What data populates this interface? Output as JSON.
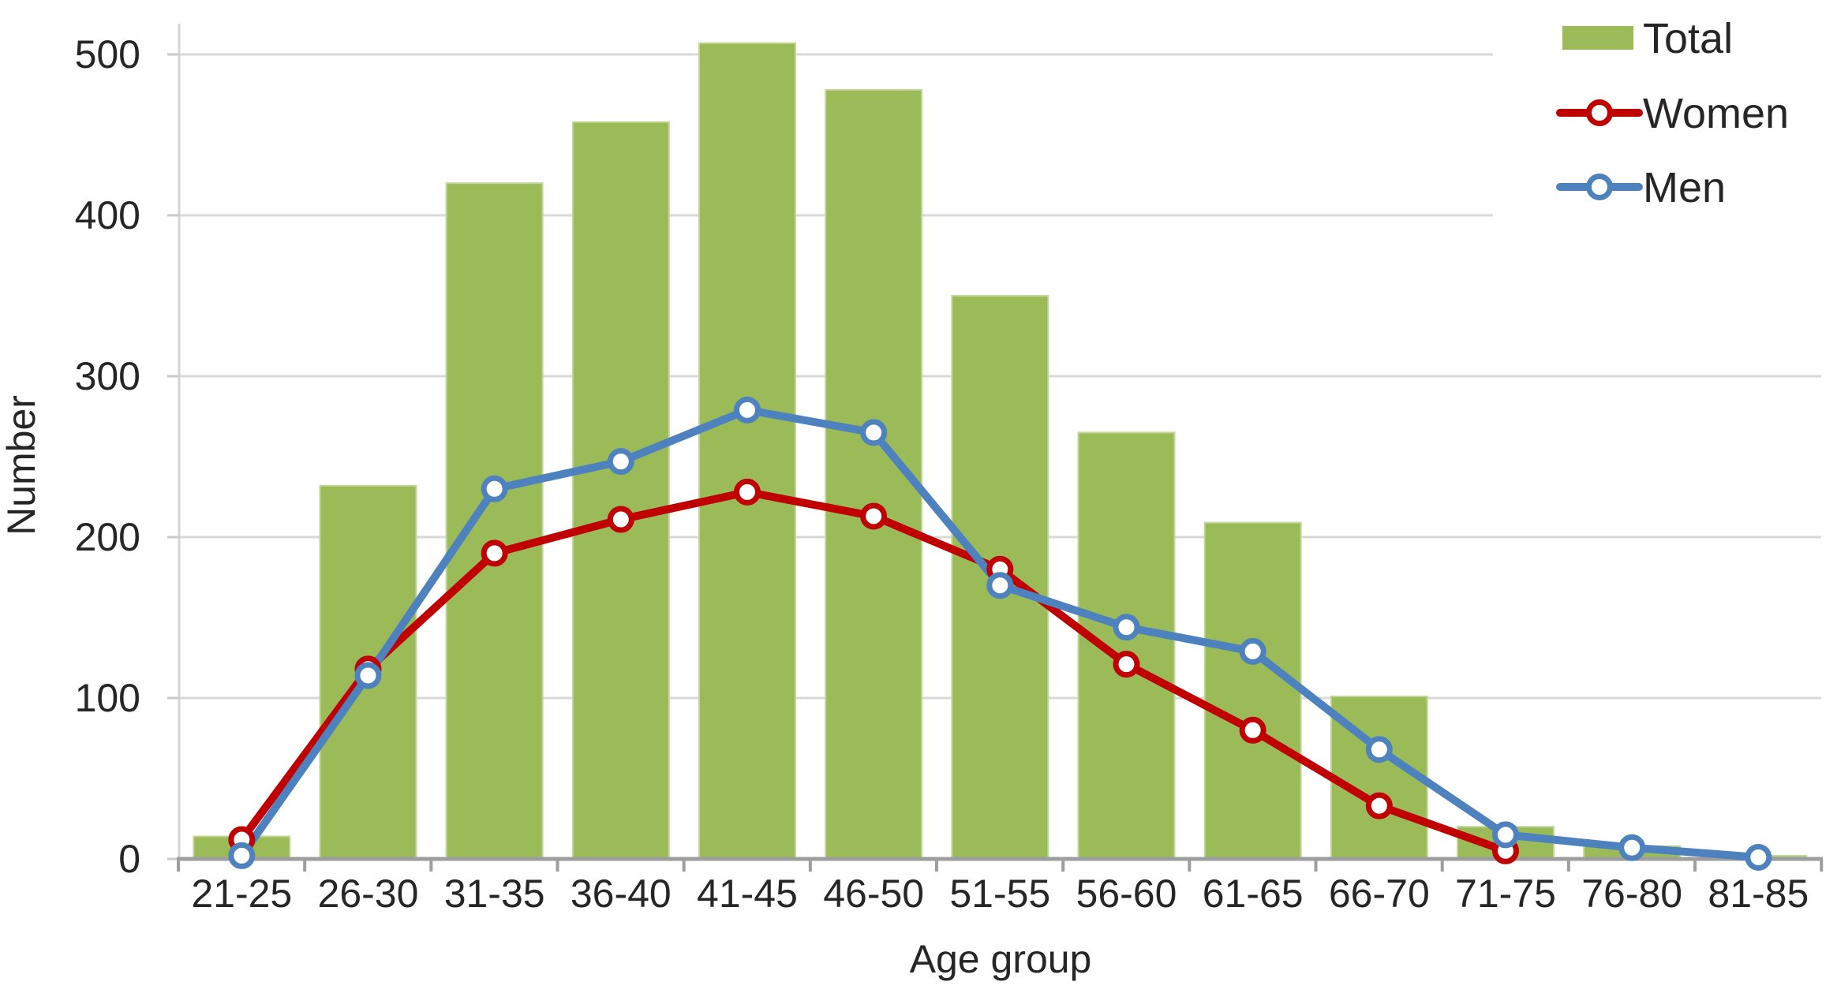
{
  "chart_data": {
    "type": "bar",
    "subtype": "combo-bar-and-lines",
    "title": "",
    "xlabel": "Age group",
    "ylabel": "Number",
    "categories": [
      "21-25",
      "26-30",
      "31-35",
      "36-40",
      "41-45",
      "46-50",
      "51-55",
      "56-60",
      "61-65",
      "66-70",
      "71-75",
      "76-80",
      "81-85"
    ],
    "series": [
      {
        "name": "Total",
        "type": "bar",
        "color": "#9BBB59",
        "border_color": "#C3D69B",
        "values": [
          14,
          232,
          420,
          458,
          507,
          478,
          350,
          265,
          209,
          101,
          20,
          8,
          2
        ]
      },
      {
        "name": "Women",
        "type": "line",
        "color": "#C00000",
        "marker": "open-circle",
        "values": [
          12,
          118,
          190,
          211,
          228,
          213,
          180,
          121,
          80,
          33,
          5,
          null,
          null
        ]
      },
      {
        "name": "Men",
        "type": "line",
        "color": "#4E82BE",
        "marker": "open-circle",
        "values": [
          2,
          114,
          230,
          247,
          279,
          265,
          170,
          144,
          129,
          68,
          15,
          7,
          1
        ]
      }
    ],
    "ylim": [
      0,
      500
    ],
    "y_ticks": [
      0,
      100,
      200,
      300,
      400,
      500
    ],
    "grid": "horizontal",
    "gridline_color": "#D9D9D9",
    "x_axis_color": "#9E9E9E",
    "y_axis_color": "#D4D4D4",
    "text_color": "#262626",
    "background_color": "#FFFFFF",
    "legend_position": "top-right"
  }
}
